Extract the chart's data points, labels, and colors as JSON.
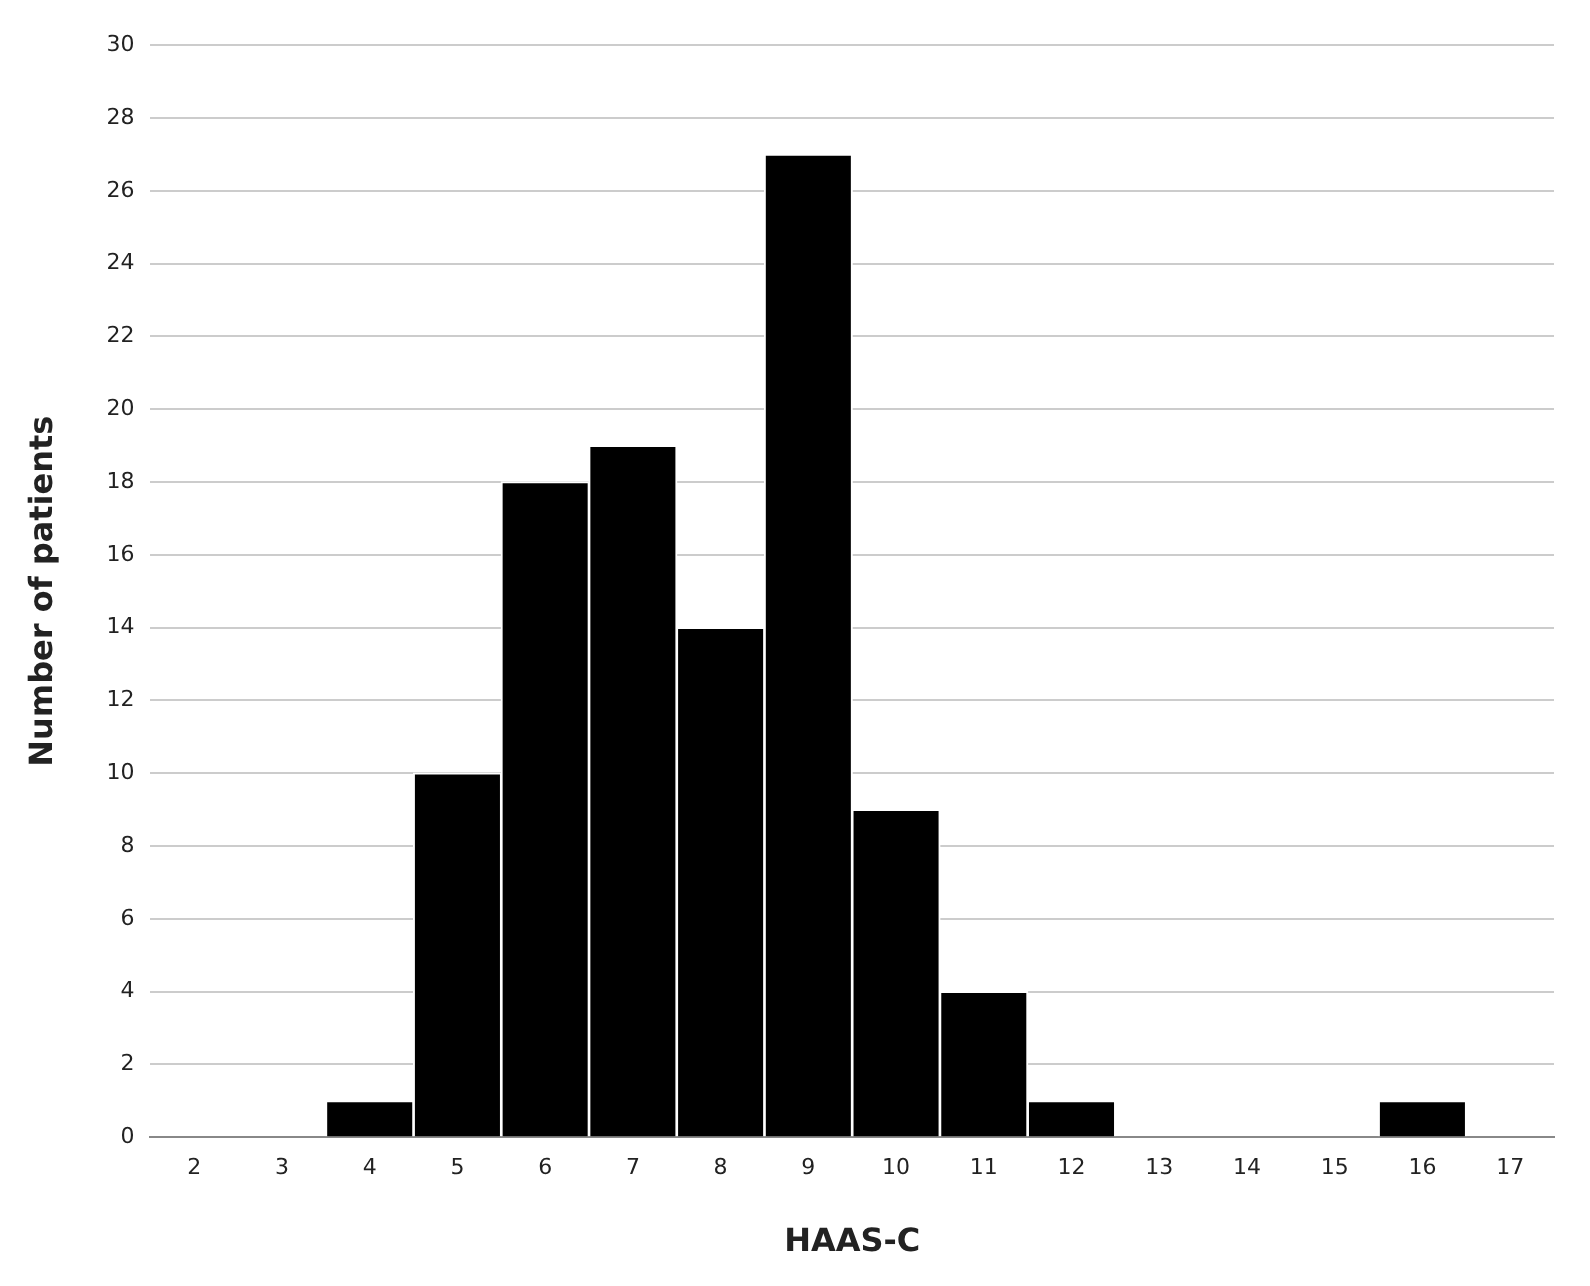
{
  "chart_data": {
    "type": "bar",
    "xlabel": "HAAS-C",
    "ylabel": "Number of patients",
    "categories": [
      "2",
      "3",
      "4",
      "5",
      "6",
      "7",
      "8",
      "9",
      "10",
      "11",
      "12",
      "13",
      "14",
      "15",
      "16",
      "17"
    ],
    "values": [
      0,
      0,
      1,
      10,
      18,
      19,
      14,
      27,
      9,
      4,
      1,
      0,
      0,
      0,
      1,
      0
    ],
    "color": "#000000",
    "ylim": [
      0,
      30
    ],
    "yticks": [
      0,
      2,
      4,
      6,
      8,
      10,
      12,
      14,
      16,
      18,
      20,
      22,
      24,
      26,
      28,
      30
    ],
    "grid": "y"
  }
}
